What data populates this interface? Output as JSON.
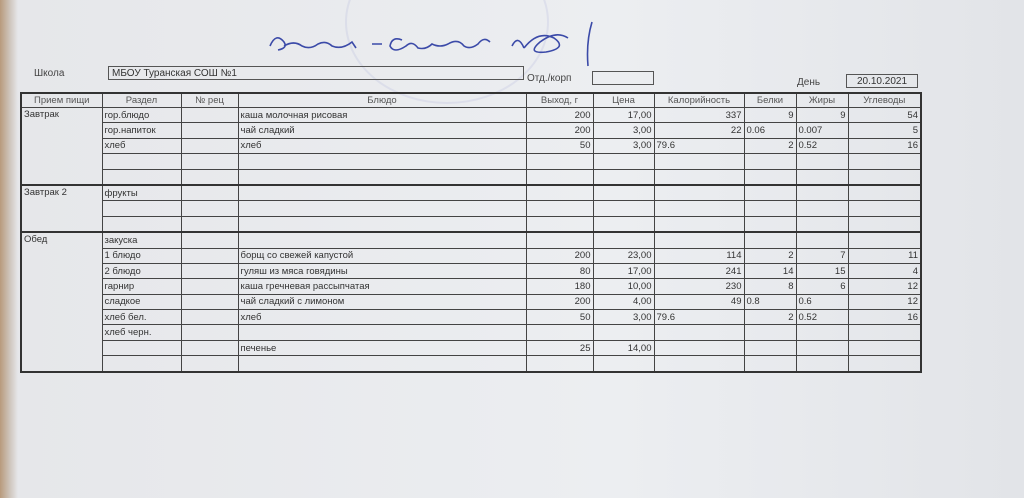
{
  "signature": "Директор - Самсонова С.А.",
  "header": {
    "school_label": "Школа",
    "school_value": "МБОУ Туранская СОШ №1",
    "dept_label": "Отд./корп",
    "dept_value": "",
    "day_label": "День",
    "day_value": "20.10.2021"
  },
  "columns": [
    "Прием пищи",
    "Раздел",
    "№ рец",
    "Блюдо",
    "Выход, г",
    "Цена",
    "Калорийность",
    "Белки",
    "Жиры",
    "Углеводы"
  ],
  "groups": [
    {
      "meal": "Завтрак",
      "rows": [
        [
          "гор.блюдо",
          "",
          "каша молочная рисовая",
          "200",
          "17,00",
          "337",
          "9",
          "9",
          "54"
        ],
        [
          "гор.напиток",
          "",
          "чай сладкий",
          "200",
          "3,00",
          "22",
          "0.06",
          "0.007",
          "5"
        ],
        [
          "хлеб",
          "",
          "хлеб",
          "50",
          "3,00",
          "79.6",
          "2",
          "0.52",
          "16"
        ],
        [
          "",
          "",
          "",
          "",
          "",
          "",
          "",
          "",
          ""
        ],
        [
          "",
          "",
          "",
          "",
          "",
          "",
          "",
          "",
          ""
        ]
      ]
    },
    {
      "meal": "Завтрак 2",
      "rows": [
        [
          "фрукты",
          "",
          "",
          "",
          "",
          "",
          "",
          "",
          ""
        ],
        [
          "",
          "",
          "",
          "",
          "",
          "",
          "",
          "",
          ""
        ],
        [
          "",
          "",
          "",
          "",
          "",
          "",
          "",
          "",
          ""
        ]
      ]
    },
    {
      "meal": "Обед",
      "rows": [
        [
          "закуска",
          "",
          "",
          "",
          "",
          "",
          "",
          "",
          ""
        ],
        [
          "1 блюдо",
          "",
          "борщ со свежей капустой",
          "200",
          "23,00",
          "114",
          "2",
          "7",
          "11"
        ],
        [
          "2 блюдо",
          "",
          "гуляш из мяса говядины",
          "80",
          "17,00",
          "241",
          "14",
          "15",
          "4"
        ],
        [
          "гарнир",
          "",
          "каша гречневая рассыпчатая",
          "180",
          "10,00",
          "230",
          "8",
          "6",
          "12"
        ],
        [
          "сладкое",
          "",
          "чай сладкий с лимоном",
          "200",
          "4,00",
          "49",
          "0.8",
          "0.6",
          "12"
        ],
        [
          "хлеб бел.",
          "",
          "хлеб",
          "50",
          "3,00",
          "79.6",
          "2",
          "0.52",
          "16"
        ],
        [
          "хлеб черн.",
          "",
          "",
          "",
          "",
          "",
          "",
          "",
          ""
        ],
        [
          "",
          "",
          "печенье",
          "25",
          "14,00",
          "",
          "",
          "",
          ""
        ],
        [
          "",
          "",
          "",
          "",
          "",
          "",
          "",
          "",
          ""
        ]
      ]
    }
  ]
}
